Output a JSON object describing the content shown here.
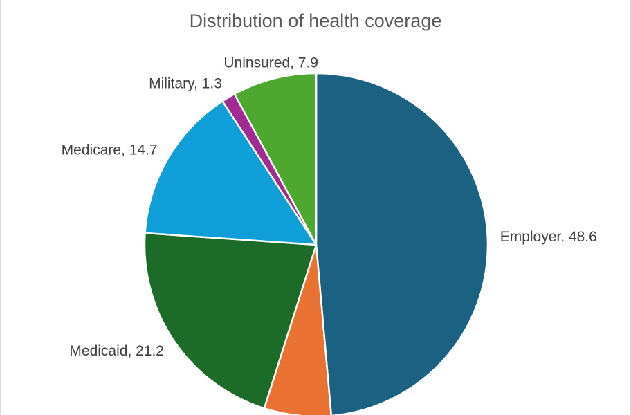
{
  "chart_data": {
    "type": "pie",
    "title": "Distribution of health coverage",
    "slices": [
      {
        "label": "Employer",
        "value": 48.6,
        "color": "#1b6282"
      },
      {
        "label": "",
        "value": 6.3,
        "color": "#e97132"
      },
      {
        "label": "Medicaid",
        "value": 21.2,
        "color": "#1d6b28"
      },
      {
        "label": "Medicare",
        "value": 14.7,
        "color": "#0f9ed5"
      },
      {
        "label": "Military",
        "value": 1.3,
        "color": "#a02b93"
      },
      {
        "label": "Uninsured",
        "value": 7.9,
        "color": "#4ea72e"
      }
    ],
    "data_labels": "category name and value, outside end",
    "start_angle": "12 o'clock, clockwise",
    "slice_border_color": "#ffffff"
  }
}
